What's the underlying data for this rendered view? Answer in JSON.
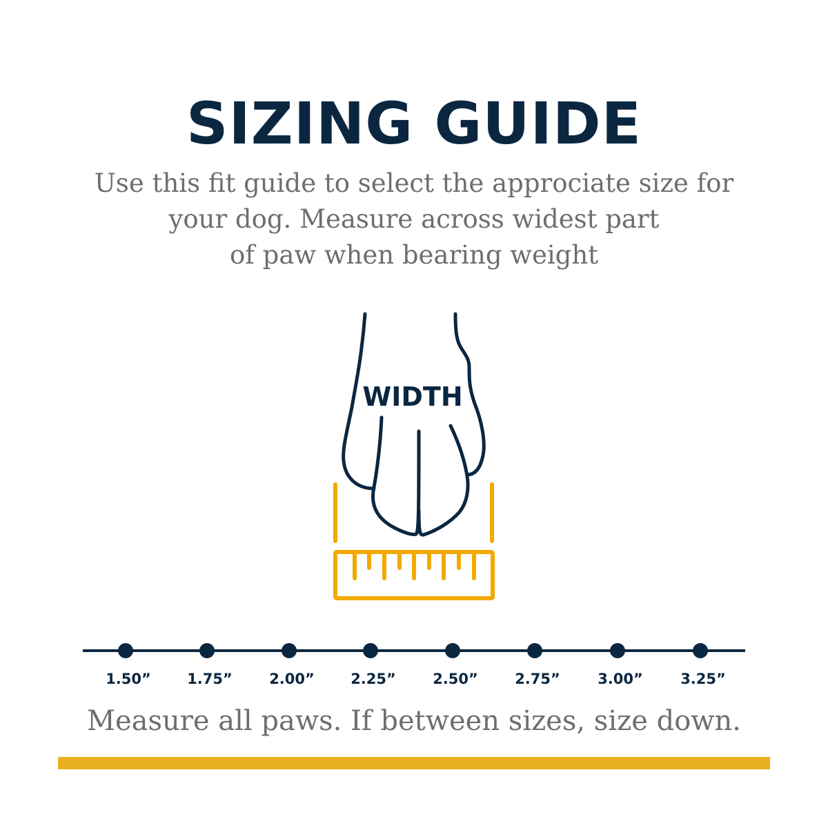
{
  "title": "SIZING GUIDE",
  "subtitle_lines": [
    "Use this fit guide to select the approciate size for",
    "your dog. Measure across widest part",
    "of paw when bearing weight"
  ],
  "illustration": {
    "label": "WIDTH",
    "icons": [
      "paw-outline-icon",
      "ruler-icon"
    ]
  },
  "sizes": [
    "1.50”",
    "1.75”",
    "2.00”",
    "2.25”",
    "2.50”",
    "2.75”",
    "3.00”",
    "3.25”"
  ],
  "footer": "Measure all paws. If between sizes, size down.",
  "colors": {
    "navy": "#0b2740",
    "gold": "#f2a900",
    "bar": "#e8b020",
    "gray_text": "#6e6e6e"
  }
}
